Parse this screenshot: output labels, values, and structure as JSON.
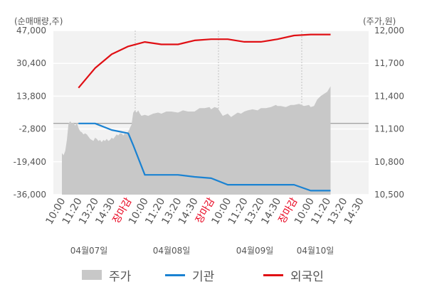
{
  "chart_data": {
    "type": "line",
    "left_axis_title": "(순매매량,주)",
    "right_axis_title": "(주가,원)",
    "left_ticks": [
      "47,000",
      "30,400",
      "13,800",
      "-2,800",
      "-19,400",
      "-36,000"
    ],
    "left_ylim": [
      -36000,
      47000
    ],
    "right_ticks": [
      "12,000",
      "11,700",
      "11,400",
      "11,100",
      "10,800",
      "10,500"
    ],
    "right_ylim": [
      10500,
      12000
    ],
    "x_ticks": [
      {
        "label": "10:00",
        "close": false
      },
      {
        "label": "11:20",
        "close": false
      },
      {
        "label": "13:20",
        "close": false
      },
      {
        "label": "14:30",
        "close": false
      },
      {
        "label": "장마감",
        "close": true
      },
      {
        "label": "10:00",
        "close": false
      },
      {
        "label": "11:20",
        "close": false
      },
      {
        "label": "13:20",
        "close": false
      },
      {
        "label": "14:30",
        "close": false
      },
      {
        "label": "장마감",
        "close": true
      },
      {
        "label": "10:00",
        "close": false
      },
      {
        "label": "11:20",
        "close": false
      },
      {
        "label": "13:20",
        "close": false
      },
      {
        "label": "14:30",
        "close": false
      },
      {
        "label": "장마감",
        "close": true
      },
      {
        "label": "10:00",
        "close": false
      },
      {
        "label": "11:20",
        "close": false
      },
      {
        "label": "13:20",
        "close": false
      },
      {
        "label": "14:30",
        "close": false
      }
    ],
    "date_labels": [
      "04월07일",
      "04월08일",
      "04월09일",
      "04월10일"
    ],
    "series": [
      {
        "name": "주가",
        "kind": "area",
        "axis": "right",
        "color": "#c8c8c8",
        "x": [
          0.0,
          0.1,
          0.2,
          0.3,
          0.4,
          0.5,
          0.6,
          0.7,
          0.8,
          0.9,
          1.0,
          1.1,
          1.2,
          1.3,
          1.4,
          1.5,
          1.6,
          1.7,
          1.8,
          1.9,
          2.0,
          2.1,
          2.2,
          2.3,
          2.4,
          2.5,
          2.6,
          2.7,
          2.8,
          2.9,
          3.0,
          3.1,
          3.2,
          3.3,
          3.4,
          3.5,
          3.6,
          3.7,
          3.8,
          3.9,
          4.0,
          4.05,
          4.1,
          4.2,
          4.3,
          4.4,
          4.5,
          4.6,
          4.7,
          4.8,
          5.0,
          5.2,
          5.5,
          5.8,
          6.0,
          6.3,
          6.6,
          7.0,
          7.3,
          7.6,
          8.0,
          8.3,
          8.6,
          8.9,
          9.0,
          9.2,
          9.4,
          9.7,
          10.0,
          10.2,
          10.4,
          10.6,
          10.8,
          11.0,
          11.2,
          11.5,
          11.8,
          12.0,
          12.3,
          12.6,
          12.9,
          13.0,
          13.2,
          13.5,
          13.8,
          14.0,
          14.3,
          14.6,
          14.9,
          15.0,
          15.2,
          15.4,
          15.6,
          15.8,
          16.0,
          16.2
        ],
        "y": [
          10880,
          10860,
          10900,
          11000,
          11150,
          11170,
          11150,
          11160,
          11130,
          11160,
          11110,
          11080,
          11070,
          11050,
          11060,
          11050,
          11030,
          11010,
          11000,
          10990,
          11020,
          11010,
          10990,
          11000,
          10980,
          11000,
          10990,
          11010,
          10990,
          11000,
          11020,
          11010,
          11030,
          11050,
          11040,
          11060,
          11060,
          11040,
          11060,
          11050,
          11080,
          11090,
          11110,
          11140,
          11250,
          11270,
          11250,
          11270,
          11240,
          11220,
          11230,
          11220,
          11240,
          11250,
          11240,
          11260,
          11260,
          11250,
          11270,
          11260,
          11260,
          11290,
          11290,
          11300,
          11280,
          11300,
          11290,
          11220,
          11240,
          11210,
          11230,
          11250,
          11240,
          11260,
          11270,
          11280,
          11270,
          11290,
          11290,
          11300,
          11320,
          11310,
          11310,
          11300,
          11320,
          11320,
          11330,
          11310,
          11320,
          11300,
          11310,
          11370,
          11400,
          11420,
          11440,
          11490
        ]
      },
      {
        "name": "기관",
        "kind": "line",
        "axis": "left",
        "color": "#1a82d2",
        "x": [
          1,
          2,
          3,
          4,
          4.3,
          5,
          6,
          7,
          8,
          9,
          10,
          11,
          12,
          13,
          14,
          15,
          16.2
        ],
        "y": [
          0,
          0,
          -3300,
          -5000,
          -11000,
          -26000,
          -26000,
          -26000,
          -27000,
          -27700,
          -31000,
          -31000,
          -31000,
          -31000,
          -31000,
          -34000,
          -34000
        ]
      },
      {
        "name": "외국인",
        "kind": "line",
        "axis": "left",
        "color": "#e00f14",
        "x": [
          1,
          2,
          3,
          4,
          5,
          6,
          7,
          8,
          9,
          10,
          11,
          12,
          13,
          14,
          15,
          16.2
        ],
        "y": [
          18000,
          28000,
          35000,
          39000,
          41200,
          40000,
          40000,
          42000,
          42600,
          42600,
          41300,
          41300,
          42600,
          44500,
          45000,
          45000
        ]
      }
    ],
    "grid": true
  }
}
